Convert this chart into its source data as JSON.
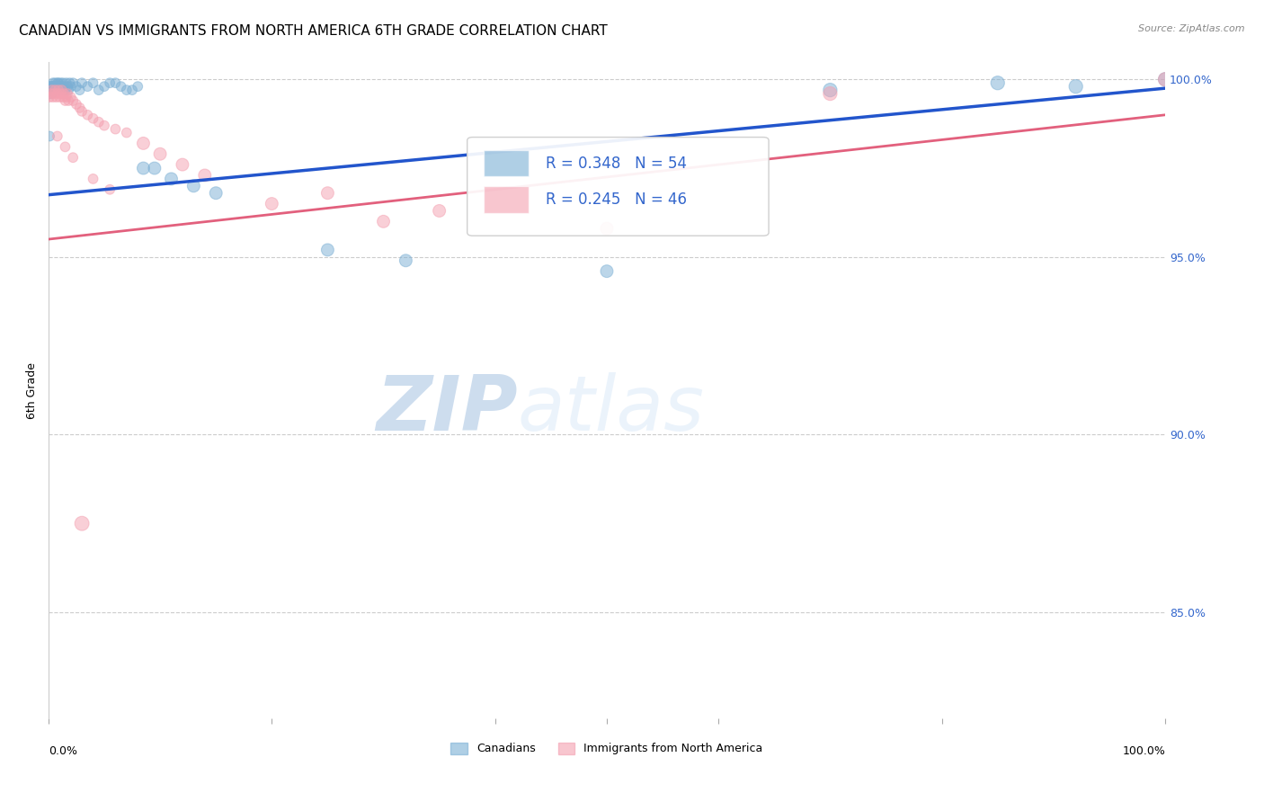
{
  "title": "CANADIAN VS IMMIGRANTS FROM NORTH AMERICA 6TH GRADE CORRELATION CHART",
  "source": "Source: ZipAtlas.com",
  "ylabel": "6th Grade",
  "xlim": [
    0.0,
    1.0
  ],
  "ylim": [
    0.82,
    1.005
  ],
  "yticks": [
    0.85,
    0.9,
    0.95,
    1.0
  ],
  "ytick_labels": [
    "85.0%",
    "90.0%",
    "95.0%",
    "100.0%"
  ],
  "watermark_zip": "ZIP",
  "watermark_atlas": "atlas",
  "background_color": "#ffffff",
  "grid_color": "#cccccc",
  "canadian_color": "#7bafd4",
  "immigrant_color": "#f4a0b0",
  "canadian_line_color": "#2255cc",
  "immigrant_line_color": "#dd4466",
  "title_fontsize": 11,
  "axis_label_fontsize": 9,
  "tick_fontsize": 9,
  "legend_fontsize": 11,
  "canadians_x": [
    0.001,
    0.002,
    0.003,
    0.004,
    0.004,
    0.005,
    0.005,
    0.006,
    0.006,
    0.007,
    0.007,
    0.008,
    0.008,
    0.009,
    0.009,
    0.01,
    0.01,
    0.011,
    0.012,
    0.013,
    0.014,
    0.015,
    0.016,
    0.017,
    0.018,
    0.019,
    0.02,
    0.022,
    0.025,
    0.028,
    0.03,
    0.035,
    0.04,
    0.045,
    0.05,
    0.06,
    0.07,
    0.08,
    0.095,
    0.11,
    0.13,
    0.15,
    0.25,
    0.32,
    0.5,
    0.7,
    0.85,
    0.92,
    1.0,
    0.001,
    0.055,
    0.065,
    0.075,
    0.085
  ],
  "canadians_y": [
    0.997,
    0.998,
    0.997,
    0.999,
    0.998,
    0.998,
    0.997,
    0.999,
    0.998,
    0.997,
    0.998,
    0.999,
    0.997,
    0.998,
    0.999,
    0.998,
    0.997,
    0.999,
    0.998,
    0.999,
    0.998,
    0.997,
    0.999,
    0.998,
    0.997,
    0.999,
    0.998,
    0.999,
    0.998,
    0.997,
    0.999,
    0.998,
    0.999,
    0.997,
    0.998,
    0.999,
    0.997,
    0.998,
    0.975,
    0.972,
    0.97,
    0.968,
    0.952,
    0.949,
    0.946,
    0.997,
    0.999,
    0.998,
    1.0,
    0.984,
    0.999,
    0.998,
    0.997,
    0.975
  ],
  "canadians_size": [
    200,
    60,
    60,
    60,
    60,
    60,
    60,
    60,
    60,
    60,
    60,
    60,
    60,
    60,
    60,
    60,
    60,
    60,
    60,
    60,
    60,
    60,
    60,
    60,
    60,
    60,
    60,
    60,
    60,
    60,
    60,
    60,
    60,
    60,
    60,
    60,
    60,
    60,
    100,
    100,
    100,
    100,
    100,
    100,
    100,
    120,
    120,
    120,
    120,
    60,
    60,
    60,
    60,
    100
  ],
  "immigrants_x": [
    0.001,
    0.002,
    0.003,
    0.004,
    0.005,
    0.006,
    0.007,
    0.008,
    0.009,
    0.01,
    0.011,
    0.012,
    0.013,
    0.014,
    0.015,
    0.016,
    0.017,
    0.018,
    0.02,
    0.022,
    0.025,
    0.028,
    0.03,
    0.035,
    0.04,
    0.045,
    0.05,
    0.06,
    0.07,
    0.085,
    0.1,
    0.12,
    0.14,
    0.2,
    0.3,
    0.25,
    0.35,
    0.5,
    0.7,
    1.0,
    0.008,
    0.015,
    0.022,
    0.03,
    0.04,
    0.055
  ],
  "immigrants_y": [
    0.995,
    0.996,
    0.997,
    0.995,
    0.996,
    0.997,
    0.995,
    0.996,
    0.997,
    0.995,
    0.996,
    0.997,
    0.995,
    0.996,
    0.994,
    0.995,
    0.996,
    0.994,
    0.995,
    0.994,
    0.993,
    0.992,
    0.991,
    0.99,
    0.989,
    0.988,
    0.987,
    0.986,
    0.985,
    0.982,
    0.979,
    0.976,
    0.973,
    0.965,
    0.96,
    0.968,
    0.963,
    0.958,
    0.996,
    1.0,
    0.984,
    0.981,
    0.978,
    0.875,
    0.972,
    0.969
  ],
  "immigrants_size": [
    60,
    60,
    60,
    60,
    60,
    60,
    60,
    60,
    60,
    60,
    60,
    60,
    60,
    60,
    60,
    60,
    60,
    60,
    60,
    60,
    60,
    60,
    60,
    60,
    60,
    60,
    60,
    60,
    60,
    100,
    100,
    100,
    100,
    100,
    100,
    100,
    100,
    100,
    120,
    120,
    60,
    60,
    60,
    130,
    60,
    60
  ],
  "can_line_x0": 0.0,
  "can_line_y0": 0.9675,
  "can_line_x1": 1.0,
  "can_line_y1": 0.9975,
  "imm_line_x0": 0.0,
  "imm_line_y0": 0.955,
  "imm_line_x1": 1.0,
  "imm_line_y1": 0.99
}
